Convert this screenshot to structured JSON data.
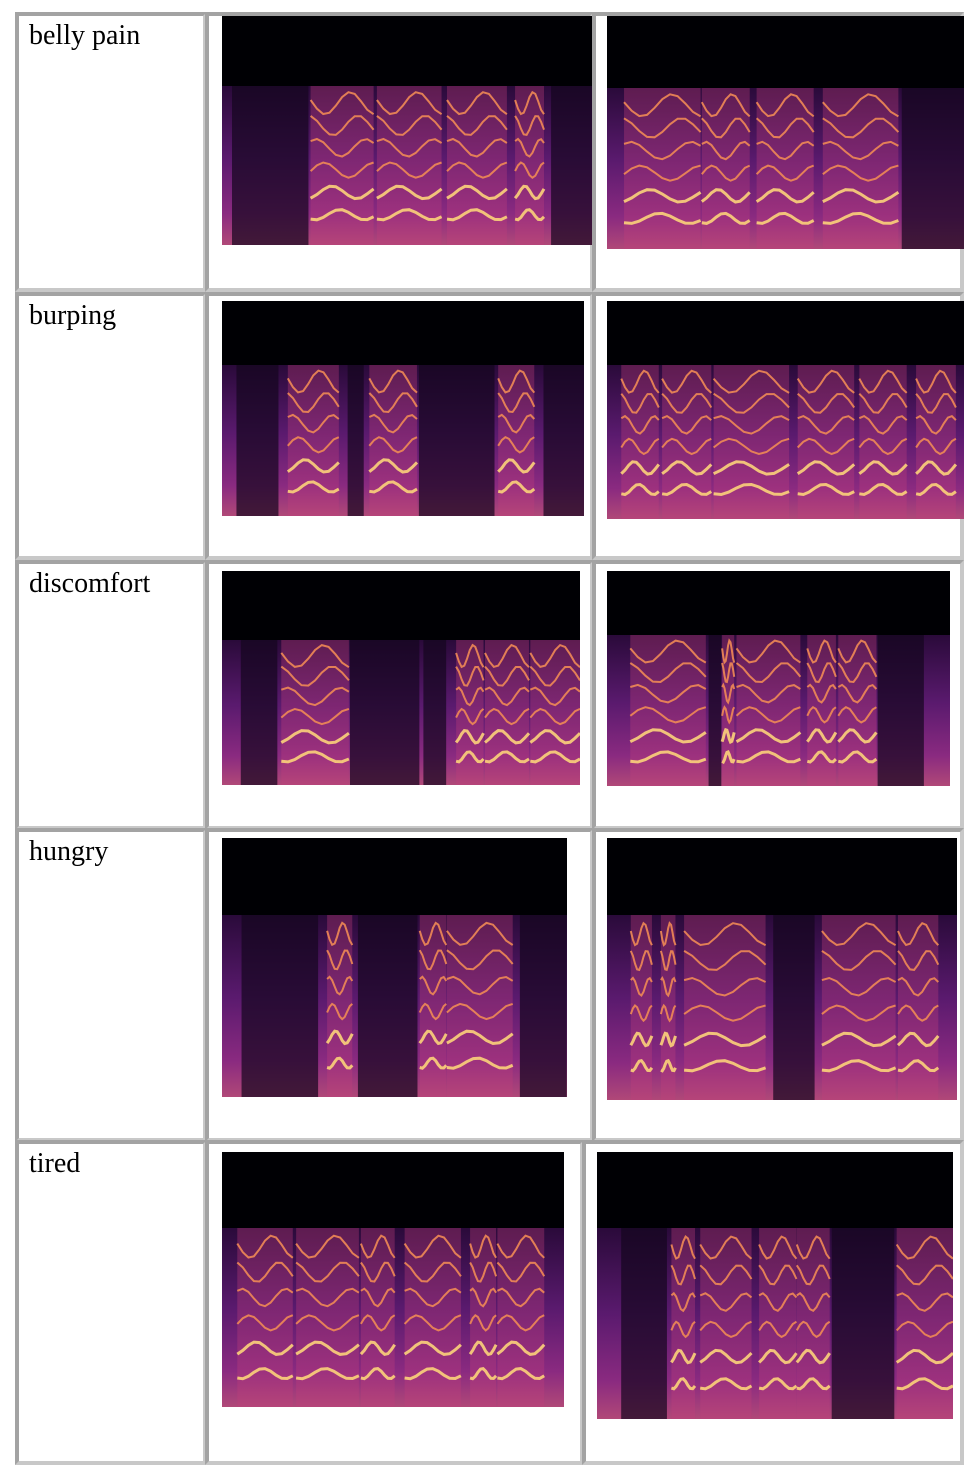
{
  "table": {
    "rows": [
      {
        "label": "belly pain"
      },
      {
        "label": "burping"
      },
      {
        "label": "discomfort"
      },
      {
        "label": "hungry"
      },
      {
        "label": "tired"
      }
    ]
  }
}
